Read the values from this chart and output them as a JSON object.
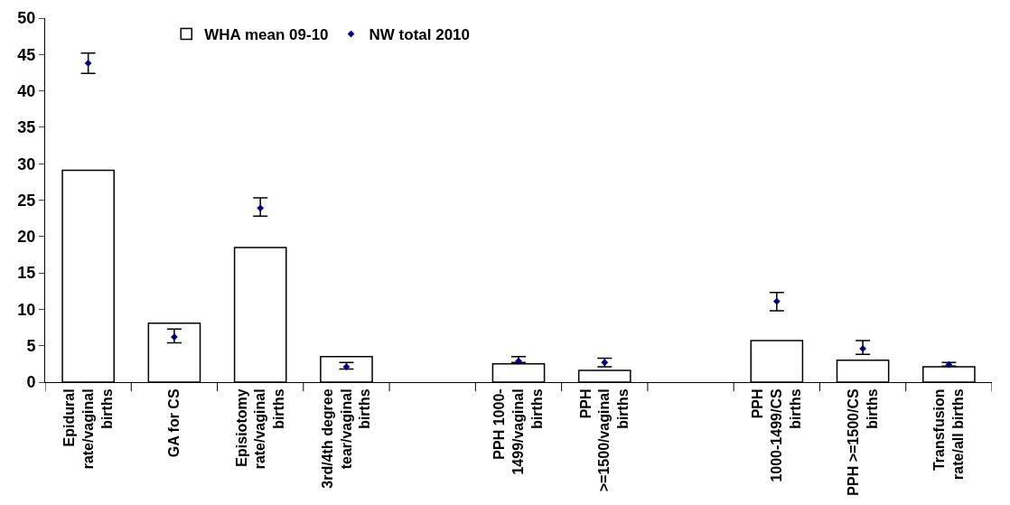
{
  "chart_data": {
    "type": "bar",
    "categories": [
      "Epidural rate/vaginal births",
      "GA for CS",
      "Episiotomy rate/vaginal births",
      "3rd/4th degree tear/vaginal births",
      null,
      "PPH 1000-1499/vaginal births",
      "PPH >=1500/vaginal births",
      null,
      "PPH 1000-1499/CS births",
      "PPH >=1500/CS births",
      "Transfusion rate/all births"
    ],
    "series": [
      {
        "name": "WHA mean 09-10",
        "color": "#ffffff",
        "values": [
          29.1,
          8.1,
          18.5,
          3.5,
          null,
          2.5,
          1.6,
          null,
          5.7,
          3.0,
          2.1
        ]
      },
      {
        "name": "NW total 2010",
        "type": "scatter",
        "color": "#000080",
        "marker": "diamond",
        "values": [
          43.8,
          6.2,
          23.9,
          2.1,
          null,
          2.9,
          2.7,
          null,
          11.1,
          4.6,
          2.4
        ],
        "errors": [
          [
            42.4,
            45.2
          ],
          [
            5.4,
            7.3
          ],
          [
            22.8,
            25.3
          ],
          [
            1.8,
            2.7
          ],
          null,
          [
            2.7,
            3.5
          ],
          [
            2.1,
            3.3
          ],
          null,
          [
            9.8,
            12.3
          ],
          [
            3.8,
            5.7
          ],
          [
            2.2,
            2.7
          ]
        ]
      }
    ],
    "ylim": [
      0,
      50
    ],
    "yticks": [
      0,
      5,
      10,
      15,
      20,
      25,
      30,
      35,
      40,
      45,
      50
    ],
    "grid": false,
    "legend": "top"
  }
}
